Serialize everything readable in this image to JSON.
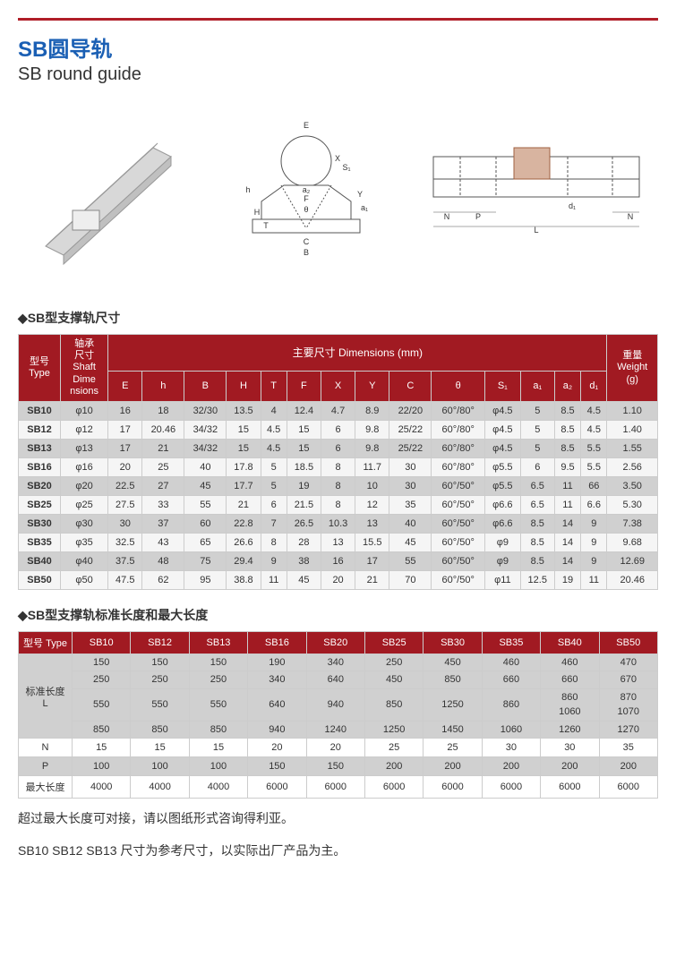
{
  "title_cn": "SB圆导轨",
  "title_en": "SB round guide",
  "section1_label": "◆SB型支撑轨尺寸",
  "section2_label": "◆SB型支撑轨标准长度和最大长度",
  "dim_header": {
    "type": "型号\nType",
    "shaft": "轴承\n尺寸\nShaft\nDime\nnsions",
    "dims": "主要尺寸 Dimensions (mm)",
    "weight": "重量\nWeight\n(g)",
    "cols": [
      "E",
      "h",
      "B",
      "H",
      "T",
      "F",
      "X",
      "Y",
      "C",
      "θ",
      "S₁",
      "a₁",
      "a₂",
      "d₁"
    ]
  },
  "dim_rows": [
    {
      "type": "SB10",
      "shaft": "φ10",
      "vals": [
        "16",
        "18",
        "32/30",
        "13.5",
        "4",
        "12.4",
        "4.7",
        "8.9",
        "22/20",
        "60°/80°",
        "φ4.5",
        "5",
        "8.5",
        "4.5"
      ],
      "w": "1.10"
    },
    {
      "type": "SB12",
      "shaft": "φ12",
      "vals": [
        "17",
        "20.46",
        "34/32",
        "15",
        "4.5",
        "15",
        "6",
        "9.8",
        "25/22",
        "60°/80°",
        "φ4.5",
        "5",
        "8.5",
        "4.5"
      ],
      "w": "1.40"
    },
    {
      "type": "SB13",
      "shaft": "φ13",
      "vals": [
        "17",
        "21",
        "34/32",
        "15",
        "4.5",
        "15",
        "6",
        "9.8",
        "25/22",
        "60°/80°",
        "φ4.5",
        "5",
        "8.5",
        "5.5"
      ],
      "w": "1.55"
    },
    {
      "type": "SB16",
      "shaft": "φ16",
      "vals": [
        "20",
        "25",
        "40",
        "17.8",
        "5",
        "18.5",
        "8",
        "11.7",
        "30",
        "60°/80°",
        "φ5.5",
        "6",
        "9.5",
        "5.5"
      ],
      "w": "2.56"
    },
    {
      "type": "SB20",
      "shaft": "φ20",
      "vals": [
        "22.5",
        "27",
        "45",
        "17.7",
        "5",
        "19",
        "8",
        "10",
        "30",
        "60°/50°",
        "φ5.5",
        "6.5",
        "11",
        "66"
      ],
      "w": "3.50"
    },
    {
      "type": "SB25",
      "shaft": "φ25",
      "vals": [
        "27.5",
        "33",
        "55",
        "21",
        "6",
        "21.5",
        "8",
        "12",
        "35",
        "60°/50°",
        "φ6.6",
        "6.5",
        "11",
        "6.6"
      ],
      "w": "5.30"
    },
    {
      "type": "SB30",
      "shaft": "φ30",
      "vals": [
        "30",
        "37",
        "60",
        "22.8",
        "7",
        "26.5",
        "10.3",
        "13",
        "40",
        "60°/50°",
        "φ6.6",
        "8.5",
        "14",
        "9"
      ],
      "w": "7.38"
    },
    {
      "type": "SB35",
      "shaft": "φ35",
      "vals": [
        "32.5",
        "43",
        "65",
        "26.6",
        "8",
        "28",
        "13",
        "15.5",
        "45",
        "60°/50°",
        "φ9",
        "8.5",
        "14",
        "9"
      ],
      "w": "9.68"
    },
    {
      "type": "SB40",
      "shaft": "φ40",
      "vals": [
        "37.5",
        "48",
        "75",
        "29.4",
        "9",
        "38",
        "16",
        "17",
        "55",
        "60°/50°",
        "φ9",
        "8.5",
        "14",
        "9"
      ],
      "w": "12.69"
    },
    {
      "type": "SB50",
      "shaft": "φ50",
      "vals": [
        "47.5",
        "62",
        "95",
        "38.8",
        "11",
        "45",
        "20",
        "21",
        "70",
        "60°/50°",
        "φ11",
        "12.5",
        "19",
        "11"
      ],
      "w": "20.46"
    }
  ],
  "len_header": {
    "type": "型号 Type",
    "cols": [
      "SB10",
      "SB12",
      "SB13",
      "SB16",
      "SB20",
      "SB25",
      "SB30",
      "SB35",
      "SB40",
      "SB50"
    ]
  },
  "len_rows": {
    "std_label": "标准长度\nL",
    "std": [
      [
        "150",
        "150",
        "150",
        "190",
        "340",
        "250",
        "450",
        "460",
        "460",
        "470"
      ],
      [
        "250",
        "250",
        "250",
        "340",
        "640",
        "450",
        "850",
        "660",
        "660",
        "670"
      ],
      [
        "550",
        "550",
        "550",
        "640",
        "940",
        "850",
        "1250",
        "860",
        "860\n1060",
        "870\n1070"
      ],
      [
        "850",
        "850",
        "850",
        "940",
        "1240",
        "1250",
        "1450",
        "1060",
        "1260",
        "1270"
      ]
    ],
    "N_label": "N",
    "N": [
      "15",
      "15",
      "15",
      "20",
      "20",
      "25",
      "25",
      "30",
      "30",
      "35"
    ],
    "P_label": "P",
    "P": [
      "100",
      "100",
      "100",
      "150",
      "150",
      "200",
      "200",
      "200",
      "200",
      "200"
    ],
    "max_label": "最大长度",
    "max": [
      "4000",
      "4000",
      "4000",
      "6000",
      "6000",
      "6000",
      "6000",
      "6000",
      "6000",
      "6000"
    ]
  },
  "footnote1": "超过最大长度可对接，请以图纸形式咨询得利亚。",
  "footnote2": "SB10 SB12 SB13 尺寸为参考尺寸，以实际出厂产品为主。",
  "colors": {
    "header_bg": "#a11a22",
    "header_text": "#ffffff",
    "row_odd": "#d0d0d0",
    "row_even": "#f5f5f5",
    "title": "#1a5fb4"
  }
}
